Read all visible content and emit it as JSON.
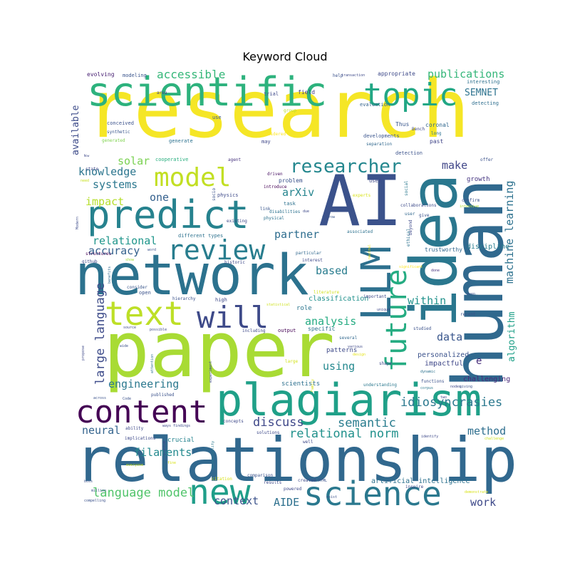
{
  "chart_data": {
    "type": "wordcloud",
    "title": "Keyword Cloud",
    "palette": "viridis",
    "background": "#ffffff",
    "words": [
      {
        "text": "research",
        "weight": 1.0,
        "color": "#f5e626"
      },
      {
        "text": "paper",
        "weight": 0.93,
        "color": "#a8db34"
      },
      {
        "text": "relationship",
        "weight": 0.9,
        "color": "#31688e"
      },
      {
        "text": "human",
        "weight": 0.88,
        "color": "#30698e"
      },
      {
        "text": "idea",
        "weight": 0.85,
        "color": "#2a778e"
      },
      {
        "text": "network",
        "weight": 0.83,
        "color": "#2c728e"
      },
      {
        "text": "AI",
        "weight": 0.82,
        "color": "#3b528b"
      },
      {
        "text": "scientific",
        "weight": 0.78,
        "color": "#2db27d"
      },
      {
        "text": "plagiarism",
        "weight": 0.74,
        "color": "#1fa088"
      },
      {
        "text": "predict",
        "weight": 0.68,
        "color": "#26828e"
      },
      {
        "text": "LLM",
        "weight": 0.65,
        "color": "#2d708e"
      },
      {
        "text": "future",
        "weight": 0.6,
        "color": "#25ac82"
      },
      {
        "text": "content",
        "weight": 0.58,
        "color": "#440154"
      },
      {
        "text": "science",
        "weight": 0.56,
        "color": "#2a788e"
      },
      {
        "text": "new",
        "weight": 0.55,
        "color": "#1f9e89"
      },
      {
        "text": "text",
        "weight": 0.53,
        "color": "#bddf26"
      },
      {
        "text": "will",
        "weight": 0.52,
        "color": "#3e4a89"
      },
      {
        "text": "topic",
        "weight": 0.5,
        "color": "#22a785"
      },
      {
        "text": "model",
        "weight": 0.45,
        "color": "#c2df23"
      },
      {
        "text": "review",
        "weight": 0.44,
        "color": "#287d8e"
      },
      {
        "text": "researcher",
        "weight": 0.33,
        "color": "#24878e"
      },
      {
        "text": "language model",
        "weight": 0.22,
        "color": "#50c46a"
      },
      {
        "text": "relational norm",
        "weight": 0.22,
        "color": "#21918c"
      },
      {
        "text": "idiosyncrasies",
        "weight": 0.21,
        "color": "#2a788e"
      },
      {
        "text": "machine learning",
        "weight": 0.21,
        "color": "#2c718e"
      },
      {
        "text": "large language",
        "weight": 0.21,
        "color": "#3e4c8a"
      },
      {
        "text": "semantic",
        "weight": 0.2,
        "color": "#287c8e"
      },
      {
        "text": "discuss",
        "weight": 0.2,
        "color": "#3f4889"
      },
      {
        "text": "method",
        "weight": 0.19,
        "color": "#2e6e8e"
      },
      {
        "text": "publications",
        "weight": 0.19,
        "color": "#34b679"
      },
      {
        "text": "accessible",
        "weight": 0.19,
        "color": "#35b779"
      },
      {
        "text": "filaments",
        "weight": 0.18,
        "color": "#23898e"
      },
      {
        "text": "context",
        "weight": 0.18,
        "color": "#3b528b"
      },
      {
        "text": "AIDE",
        "weight": 0.17,
        "color": "#2d708e"
      },
      {
        "text": "work",
        "weight": 0.17,
        "color": "#3e4989"
      },
      {
        "text": "data",
        "weight": 0.17,
        "color": "#39568c"
      },
      {
        "text": "analysis",
        "weight": 0.17,
        "color": "#25ab82"
      },
      {
        "text": "within",
        "weight": 0.17,
        "color": "#20928c"
      },
      {
        "text": "using",
        "weight": 0.17,
        "color": "#23888e"
      },
      {
        "text": "based",
        "weight": 0.16,
        "color": "#287c8e"
      },
      {
        "text": "partner",
        "weight": 0.16,
        "color": "#2e6d8e"
      },
      {
        "text": "arXiv",
        "weight": 0.16,
        "color": "#25848e"
      },
      {
        "text": "accuracy",
        "weight": 0.16,
        "color": "#34618d"
      },
      {
        "text": "relational",
        "weight": 0.16,
        "color": "#1f968b"
      },
      {
        "text": "impact",
        "weight": 0.16,
        "color": "#b5de2b"
      },
      {
        "text": "systems",
        "weight": 0.15,
        "color": "#2a778e"
      },
      {
        "text": "knowledge",
        "weight": 0.15,
        "color": "#2b758e"
      },
      {
        "text": "solar",
        "weight": 0.15,
        "color": "#7ad151"
      },
      {
        "text": "one",
        "weight": 0.15,
        "color": "#34608d"
      },
      {
        "text": "make",
        "weight": 0.15,
        "color": "#404688"
      },
      {
        "text": "engineering",
        "weight": 0.15,
        "color": "#2a788e"
      },
      {
        "text": "neural",
        "weight": 0.15,
        "color": "#33638d"
      },
      {
        "text": "SEMNET",
        "weight": 0.13,
        "color": "#2c728e"
      },
      {
        "text": "available",
        "weight": 0.13,
        "color": "#3e4c8a"
      },
      {
        "text": "algorithm",
        "weight": 0.13,
        "color": "#1fa088"
      },
      {
        "text": "e",
        "weight": 0.13,
        "color": "#472d7b"
      },
      {
        "text": "personalized",
        "weight": 0.1,
        "color": "#3b528b"
      },
      {
        "text": "impactful",
        "weight": 0.1,
        "color": "#3f4788"
      },
      {
        "text": "challenging",
        "weight": 0.1,
        "color": "#482979"
      },
      {
        "text": "discipline",
        "weight": 0.1,
        "color": "#287c8e"
      },
      {
        "text": "classification",
        "weight": 0.1,
        "color": "#21918c"
      },
      {
        "text": "patterns",
        "weight": 0.1,
        "color": "#3e4a89"
      },
      {
        "text": "growth",
        "weight": 0.09,
        "color": "#453581"
      },
      {
        "text": "scientists",
        "weight": 0.09,
        "color": "#2d708e"
      },
      {
        "text": "crucial",
        "weight": 0.09,
        "color": "#25838e"
      },
      {
        "text": "role",
        "weight": 0.09,
        "color": "#2b758e"
      },
      {
        "text": "specific",
        "weight": 0.08,
        "color": "#2c718e"
      },
      {
        "text": "trustworthy",
        "weight": 0.08,
        "color": "#31678e"
      },
      {
        "text": "problem",
        "weight": 0.08,
        "color": "#3b528b"
      },
      {
        "text": "appropriate",
        "weight": 0.08,
        "color": "#3e4a89"
      },
      {
        "text": "evolving",
        "weight": 0.08,
        "color": "#482173"
      },
      {
        "text": "modeling",
        "weight": 0.07,
        "color": "#3a548c"
      },
      {
        "text": "generate",
        "weight": 0.07,
        "color": "#2c718e"
      },
      {
        "text": "cooperative",
        "weight": 0.07,
        "color": "#29af7f"
      },
      {
        "text": "conceived",
        "weight": 0.07,
        "color": "#3b528b"
      },
      {
        "text": "synthetic",
        "weight": 0.06,
        "color": "#39568c"
      },
      {
        "text": "generated",
        "weight": 0.06,
        "color": "#7fd34e"
      },
      {
        "text": "interesting",
        "weight": 0.07,
        "color": "#2d708e"
      },
      {
        "text": "detecting",
        "weight": 0.07,
        "color": "#2e6e8e"
      },
      {
        "text": "evaluation",
        "weight": 0.07,
        "color": "#33628d"
      },
      {
        "text": "field",
        "weight": 0.08,
        "color": "#443a83"
      },
      {
        "text": "trial",
        "weight": 0.07,
        "color": "#3e4989"
      },
      {
        "text": "area",
        "weight": 0.06,
        "color": "#404688"
      },
      {
        "text": "help",
        "weight": 0.06,
        "color": "#3b528b"
      },
      {
        "text": "use",
        "weight": 0.07,
        "color": "#39568c"
      },
      {
        "text": "group",
        "weight": 0.06,
        "color": "#b8de29"
      },
      {
        "text": "coronal",
        "weight": 0.08,
        "color": "#31688e"
      },
      {
        "text": "Thus",
        "weight": 0.08,
        "color": "#39568c"
      },
      {
        "text": "Bench",
        "weight": 0.06,
        "color": "#3e4a89"
      },
      {
        "text": "long",
        "weight": 0.06,
        "color": "#2c718e"
      },
      {
        "text": "past",
        "weight": 0.08,
        "color": "#404588"
      },
      {
        "text": "developments",
        "weight": 0.07,
        "color": "#3a548c"
      },
      {
        "text": "separation",
        "weight": 0.06,
        "color": "#31688e"
      },
      {
        "text": "considered",
        "weight": 0.06,
        "color": "#fde725"
      },
      {
        "text": "may",
        "weight": 0.07,
        "color": "#3f4788"
      },
      {
        "text": "agent",
        "weight": 0.06,
        "color": "#46327e"
      },
      {
        "text": "detection",
        "weight": 0.07,
        "color": "#3b528b"
      },
      {
        "text": "offer",
        "weight": 0.06,
        "color": "#3b528b"
      },
      {
        "text": "state",
        "weight": 0.06,
        "color": "#3f4788"
      },
      {
        "text": "need",
        "weight": 0.05,
        "color": "#c8e020"
      },
      {
        "text": "driven",
        "weight": 0.06,
        "color": "#471063"
      },
      {
        "text": "introduce",
        "weight": 0.06,
        "color": "#440154"
      },
      {
        "text": "task",
        "weight": 0.07,
        "color": "#2c718e"
      },
      {
        "text": "used",
        "weight": 0.07,
        "color": "#3e4989"
      },
      {
        "text": "experts",
        "weight": 0.06,
        "color": "#d8e219"
      },
      {
        "text": "social",
        "weight": 0.06,
        "color": "#2a788e"
      },
      {
        "text": "confirm",
        "weight": 0.06,
        "color": "#3b528b"
      },
      {
        "text": "intensive",
        "weight": 0.05,
        "color": "#addc30"
      },
      {
        "text": "collaborations",
        "weight": 0.06,
        "color": "#3e4c8a"
      },
      {
        "text": "give",
        "weight": 0.06,
        "color": "#3b528b"
      },
      {
        "text": "user",
        "weight": 0.06,
        "color": "#31688e"
      },
      {
        "text": "physics",
        "weight": 0.07,
        "color": "#3e4a89"
      },
      {
        "text": "link",
        "weight": 0.06,
        "color": "#39568c"
      },
      {
        "text": "socio",
        "weight": 0.06,
        "color": "#3b528b"
      },
      {
        "text": "physical",
        "weight": 0.06,
        "color": "#2c718e"
      },
      {
        "text": "disabilities",
        "weight": 0.06,
        "color": "#2c718e"
      },
      {
        "text": "existing",
        "weight": 0.06,
        "color": "#3e4989"
      },
      {
        "text": "due",
        "weight": 0.05,
        "color": "#3e4989"
      },
      {
        "text": "transaction",
        "weight": 0.05,
        "color": "#3e4a89"
      },
      {
        "text": "narrow",
        "weight": 0.05,
        "color": "#39568c"
      },
      {
        "text": "associated",
        "weight": 0.06,
        "color": "#2c718e"
      },
      {
        "text": "beyond",
        "weight": 0.06,
        "color": "#3e4a89"
      },
      {
        "text": "ethical",
        "weight": 0.06,
        "color": "#2c718e"
      },
      {
        "text": "different types",
        "weight": 0.07,
        "color": "#2c718e"
      },
      {
        "text": "word",
        "weight": 0.05,
        "color": "#3b528b"
      },
      {
        "text": "structures",
        "weight": 0.06,
        "color": "#440154"
      },
      {
        "text": "github",
        "weight": 0.06,
        "color": "#3e4989"
      },
      {
        "text": "show",
        "weight": 0.05,
        "color": "#a2da37"
      },
      {
        "text": "benefits",
        "weight": 0.05,
        "color": "#31688e"
      },
      {
        "text": "Modern",
        "weight": 0.05,
        "color": "#3e4c8a"
      },
      {
        "text": "historic",
        "weight": 0.06,
        "color": "#3e4989"
      },
      {
        "text": "interest",
        "weight": 0.06,
        "color": "#3e4989"
      },
      {
        "text": "particular",
        "weight": 0.06,
        "color": "#31688e"
      },
      {
        "text": "neutral",
        "weight": 0.05,
        "color": "#f1e51d"
      },
      {
        "text": "significant",
        "weight": 0.05,
        "color": "#fde725"
      },
      {
        "text": "done",
        "weight": 0.05,
        "color": "#46327e"
      },
      {
        "text": "quality",
        "weight": 0.05,
        "color": "#2c718e"
      },
      {
        "text": "consider",
        "weight": 0.06,
        "color": "#39568c"
      },
      {
        "text": "open",
        "weight": 0.07,
        "color": "#3b528b"
      },
      {
        "text": "hierarchy",
        "weight": 0.06,
        "color": "#3b528b"
      },
      {
        "text": "high",
        "weight": 0.07,
        "color": "#3e4989"
      },
      {
        "text": "literature",
        "weight": 0.06,
        "color": "#d0e11c"
      },
      {
        "text": "statistical",
        "weight": 0.05,
        "color": "#cde11d"
      },
      {
        "text": "important",
        "weight": 0.06,
        "color": "#3e4989"
      },
      {
        "text": "unique",
        "weight": 0.05,
        "color": "#3e4989"
      },
      {
        "text": "even",
        "weight": 0.05,
        "color": "#3b528b"
      },
      {
        "text": "recent",
        "weight": 0.06,
        "color": "#3b528b"
      },
      {
        "text": "source",
        "weight": 0.05,
        "color": "#3e4989"
      },
      {
        "text": "possible",
        "weight": 0.05,
        "color": "#3e4989"
      },
      {
        "text": "including",
        "weight": 0.06,
        "color": "#3e4989"
      },
      {
        "text": "output",
        "weight": 0.07,
        "color": "#440154"
      },
      {
        "text": "several",
        "weight": 0.06,
        "color": "#31688e"
      },
      {
        "text": "various",
        "weight": 0.05,
        "color": "#3e4989"
      },
      {
        "text": "studied",
        "weight": 0.06,
        "color": "#3b528b"
      },
      {
        "text": "propose",
        "weight": 0.05,
        "color": "#3e4989"
      },
      {
        "text": "wide",
        "weight": 0.05,
        "color": "#3b528b"
      },
      {
        "text": "attention",
        "weight": 0.05,
        "color": "#2c718e"
      },
      {
        "text": "experiment",
        "weight": 0.05,
        "color": "#3e4989"
      },
      {
        "text": "design",
        "weight": 0.05,
        "color": "#e5e419"
      },
      {
        "text": "large",
        "weight": 0.06,
        "color": "#d2e21b"
      },
      {
        "text": "shape",
        "weight": 0.06,
        "color": "#3e4989"
      },
      {
        "text": "dynamic",
        "weight": 0.05,
        "color": "#2c718e"
      },
      {
        "text": "Family",
        "weight": 0.05,
        "color": "#d8e219"
      },
      {
        "text": "understanding",
        "weight": 0.06,
        "color": "#2a788e"
      },
      {
        "text": "functions",
        "weight": 0.06,
        "color": "#3b528b"
      },
      {
        "text": "corpus",
        "weight": 0.05,
        "color": "#2a788e"
      },
      {
        "text": "nodes",
        "weight": 0.05,
        "color": "#3e4989"
      },
      {
        "text": "giving",
        "weight": 0.05,
        "color": "#3b528b"
      },
      {
        "text": "across",
        "weight": 0.05,
        "color": "#3b528b"
      },
      {
        "text": "Code",
        "weight": 0.05,
        "color": "#3b528b"
      },
      {
        "text": "published",
        "weight": 0.06,
        "color": "#3b528b"
      },
      {
        "text": "two",
        "weight": 0.05,
        "color": "#3e4989"
      },
      {
        "text": "ability",
        "weight": 0.06,
        "color": "#3e4989"
      },
      {
        "text": "ways findings",
        "weight": 0.05,
        "color": "#3e4989"
      },
      {
        "text": "implications",
        "weight": 0.06,
        "color": "#3e4989"
      },
      {
        "text": "quantum",
        "weight": 0.05,
        "color": "#3e4989"
      },
      {
        "text": "concepts",
        "weight": 0.06,
        "color": "#3e4989"
      },
      {
        "text": "solutions",
        "weight": 0.06,
        "color": "#3e4989"
      },
      {
        "text": "well",
        "weight": 0.06,
        "color": "#3e4989"
      },
      {
        "text": "identify",
        "weight": 0.05,
        "color": "#3e4989"
      },
      {
        "text": "challenge",
        "weight": 0.05,
        "color": "#cde11d"
      },
      {
        "text": "everyone",
        "weight": 0.05,
        "color": "#cde11d"
      },
      {
        "text": "fine",
        "weight": 0.05,
        "color": "#d8e219"
      },
      {
        "text": "accessibility",
        "weight": 0.05,
        "color": "#2a788e"
      },
      {
        "text": "comparison",
        "weight": 0.06,
        "color": "#3b528b"
      },
      {
        "text": "citation",
        "weight": 0.06,
        "color": "#d8e219"
      },
      {
        "text": "boss",
        "weight": 0.05,
        "color": "#3b528b"
      },
      {
        "text": "million",
        "weight": 0.05,
        "color": "#3b528b"
      },
      {
        "text": "compelling",
        "weight": 0.05,
        "color": "#3b528b"
      },
      {
        "text": "results",
        "weight": 0.06,
        "color": "#3e4989"
      },
      {
        "text": "powered",
        "weight": 0.06,
        "color": "#3e4989"
      },
      {
        "text": "created",
        "weight": 0.06,
        "color": "#3e4989"
      },
      {
        "text": "HTML",
        "weight": 0.05,
        "color": "#3b528b"
      },
      {
        "text": "exist",
        "weight": 0.05,
        "color": "#3b528b"
      },
      {
        "text": "inspire",
        "weight": 0.06,
        "color": "#3e4989"
      },
      {
        "text": "artificial intelligence",
        "weight": 0.1,
        "color": "#2c718e"
      },
      {
        "text": "demonstrate",
        "weight": 0.05,
        "color": "#d8e219"
      },
      {
        "text": "Now",
        "weight": 0.04,
        "color": "#3e4989"
      }
    ]
  }
}
